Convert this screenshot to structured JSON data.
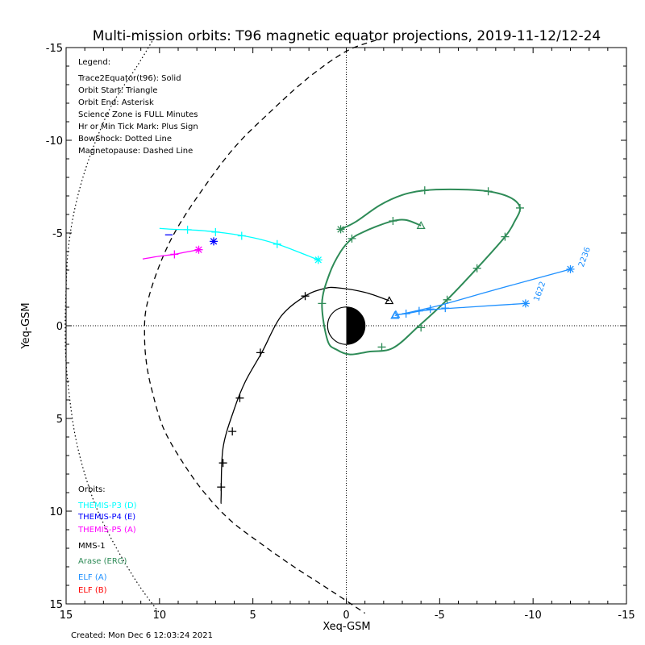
{
  "chart_data": {
    "type": "line",
    "title": "Multi-mission orbits: T96 magnetic equator projections, 2019-11-12/12-24",
    "xlabel": "Xeq-GSM",
    "ylabel": "Yeq-GSM",
    "xlim": [
      15,
      -15
    ],
    "ylim": [
      -15,
      15
    ],
    "x_ticks": [
      15,
      10,
      5,
      0,
      -5,
      -10,
      -15
    ],
    "y_ticks": [
      -15,
      -10,
      -5,
      0,
      5,
      10,
      15
    ],
    "footer": "Created: Mon Dec  6 12:03:24 2021",
    "legend": {
      "title": "Legend:",
      "lines": [
        "Trace2Equator(t96): Solid",
        "Orbit Start: Triangle",
        "Orbit End: Asterisk",
        "Science Zone is FULL Minutes",
        "Hr or Min Tick Mark: Plus Sign",
        "BowShock: Dotted Line",
        "Magnetopause: Dashed Line"
      ]
    },
    "orbits": {
      "title": "Orbits:",
      "items": [
        {
          "label": "THEMIS-P3 (D)",
          "color": "#00ffff"
        },
        {
          "label": "THEMIS-P4 (E)",
          "color": "#0000ff"
        },
        {
          "label": "THEMIS-P5 (A)",
          "color": "#ff00ff"
        },
        {
          "label": "MMS-1",
          "color": "#000000"
        },
        {
          "label": "Arase (ERG)",
          "color": "#2e8b57"
        },
        {
          "label": "ELF (A)",
          "color": "#1e90ff"
        },
        {
          "label": "ELF (B)",
          "color": "#ff0000"
        }
      ]
    },
    "boundaries": {
      "bowshock": [
        [
          10.3,
          -15.5
        ],
        [
          11.2,
          -14
        ],
        [
          12.5,
          -12
        ],
        [
          13.4,
          -10
        ],
        [
          14.1,
          -8
        ],
        [
          14.6,
          -6
        ],
        [
          14.9,
          -4
        ],
        [
          15.0,
          -2
        ],
        [
          15.05,
          0
        ],
        [
          15.0,
          2
        ],
        [
          14.8,
          4
        ],
        [
          14.5,
          6
        ],
        [
          14.0,
          8
        ],
        [
          13.3,
          10
        ],
        [
          12.3,
          12
        ],
        [
          11.1,
          14
        ],
        [
          10.0,
          15.5
        ]
      ],
      "magnetopause": [
        [
          -1.6,
          -15.4
        ],
        [
          0,
          -14.8
        ],
        [
          2,
          -13.4
        ],
        [
          4,
          -11.6
        ],
        [
          6,
          -9.6
        ],
        [
          7.8,
          -7.2
        ],
        [
          9.2,
          -5.0
        ],
        [
          10.1,
          -3.0
        ],
        [
          10.7,
          -1.0
        ],
        [
          10.8,
          0.5
        ],
        [
          10.7,
          2
        ],
        [
          10.4,
          3.5
        ],
        [
          9.8,
          5.5
        ],
        [
          8.8,
          7.3
        ],
        [
          7.6,
          9
        ],
        [
          6.2,
          10.5
        ],
        [
          4.5,
          11.8
        ],
        [
          2.8,
          13
        ],
        [
          0.8,
          14.3
        ],
        [
          -1.0,
          15.5
        ]
      ]
    },
    "series": [
      {
        "name": "MMS-1",
        "color": "#000000",
        "points": [
          [
            -2.3,
            -1.35
          ],
          [
            -1.0,
            -1.8
          ],
          [
            0.5,
            -2.05
          ],
          [
            1.2,
            -2.0
          ],
          [
            2.2,
            -1.6
          ],
          [
            3.5,
            -0.5
          ],
          [
            4.5,
            1.4
          ],
          [
            5.4,
            3.0
          ],
          [
            6.0,
            4.5
          ],
          [
            6.6,
            6.6
          ],
          [
            6.7,
            9.2
          ],
          [
            6.7,
            9.6
          ]
        ],
        "ticks": [
          [
            2.2,
            -1.6
          ],
          [
            4.6,
            1.45
          ],
          [
            5.7,
            3.9
          ],
          [
            6.1,
            5.7
          ],
          [
            6.6,
            7.4
          ],
          [
            6.7,
            8.7
          ]
        ],
        "start": [
          -2.3,
          -1.35
        ],
        "end": null
      },
      {
        "name": "Arase (ERG)",
        "color": "#2e8b57",
        "points": [
          [
            -4.0,
            -5.4
          ],
          [
            -3.2,
            -5.7
          ],
          [
            -2.5,
            -5.65
          ],
          [
            -1.6,
            -5.35
          ],
          [
            -0.8,
            -5.0
          ],
          [
            -0.3,
            -4.7
          ],
          [
            0.3,
            -4.0
          ],
          [
            0.9,
            -2.8
          ],
          [
            1.3,
            -1.2
          ],
          [
            1.0,
            0.8
          ],
          [
            0.5,
            1.3
          ],
          [
            -0.2,
            1.55
          ],
          [
            -1.2,
            1.4
          ],
          [
            -2.5,
            1.2
          ],
          [
            -3.9,
            0
          ],
          [
            -5.4,
            -1.4
          ],
          [
            -7.0,
            -3.1
          ],
          [
            -8.5,
            -4.8
          ],
          [
            -9.0,
            -5.6
          ],
          [
            -9.3,
            -6.35
          ],
          [
            -8.8,
            -6.9
          ],
          [
            -7.6,
            -7.25
          ],
          [
            -6.0,
            -7.35
          ],
          [
            -4.2,
            -7.3
          ],
          [
            -3.0,
            -7.05
          ],
          [
            -1.8,
            -6.5
          ],
          [
            -0.5,
            -5.6
          ],
          [
            0.3,
            -5.2
          ]
        ],
        "ticks": [
          [
            -2.5,
            -5.65
          ],
          [
            -0.3,
            -4.7
          ],
          [
            1.3,
            -1.2
          ],
          [
            -1.9,
            1.15
          ],
          [
            -4.0,
            0.1
          ],
          [
            -5.4,
            -1.4
          ],
          [
            -7.0,
            -3.1
          ],
          [
            -8.5,
            -4.8
          ],
          [
            -9.3,
            -6.35
          ],
          [
            -7.6,
            -7.25
          ],
          [
            -4.2,
            -7.3
          ]
        ],
        "start": [
          -4.0,
          -5.4
        ],
        "end": [
          0.3,
          -5.2
        ]
      },
      {
        "name": "THEMIS-P3 (D)",
        "color": "#00ffff",
        "points": [
          [
            1.5,
            -3.55
          ],
          [
            2.5,
            -3.95
          ],
          [
            3.7,
            -4.4
          ],
          [
            5.0,
            -4.75
          ],
          [
            6.5,
            -5.0
          ],
          [
            8.0,
            -5.15
          ],
          [
            9.3,
            -5.2
          ],
          [
            10.0,
            -5.25
          ]
        ],
        "ticks": [
          [
            3.7,
            -4.4
          ],
          [
            5.6,
            -4.85
          ],
          [
            7.0,
            -5.05
          ],
          [
            8.5,
            -5.18
          ]
        ],
        "start": null,
        "end": [
          1.5,
          -3.55
        ]
      },
      {
        "name": "THEMIS-P5 (A)",
        "color": "#ff00ff",
        "points": [
          [
            10.9,
            -3.6
          ],
          [
            10.0,
            -3.75
          ],
          [
            9.2,
            -3.85
          ],
          [
            8.7,
            -3.95
          ],
          [
            7.9,
            -4.1
          ]
        ],
        "ticks": [
          [
            9.2,
            -3.85
          ]
        ],
        "start": null,
        "end": [
          7.9,
          -4.1
        ]
      },
      {
        "name": "THEMIS-P4 (E)",
        "color": "#0000ff",
        "points": [
          [
            9.7,
            -4.9
          ],
          [
            9.3,
            -4.9
          ]
        ],
        "ticks": [],
        "start": null,
        "end": [
          7.1,
          -4.55
        ]
      },
      {
        "name": "ELF (A) 2236",
        "color": "#1e90ff",
        "label": "2236",
        "points": [
          [
            -2.6,
            -0.55
          ],
          [
            -5.0,
            -1.1
          ],
          [
            -8.0,
            -1.95
          ],
          [
            -12.0,
            -3.05
          ]
        ],
        "ticks": [],
        "start": [
          -2.6,
          -0.55
        ],
        "end": [
          -12.0,
          -3.05
        ]
      },
      {
        "name": "ELF (A) 1622",
        "color": "#1e90ff",
        "label": "1622",
        "points": [
          [
            -2.65,
            -0.6
          ],
          [
            -3.2,
            -0.65
          ],
          [
            -4.0,
            -0.8
          ],
          [
            -5.0,
            -0.9
          ],
          [
            -6.5,
            -1.0
          ],
          [
            -8.0,
            -1.1
          ],
          [
            -9.6,
            -1.2
          ]
        ],
        "ticks": [
          [
            -3.2,
            -0.65
          ],
          [
            -3.9,
            -0.8
          ],
          [
            -4.5,
            -0.9
          ],
          [
            -5.3,
            -0.95
          ]
        ],
        "start": [
          -2.65,
          -0.6
        ],
        "end": [
          -9.6,
          -1.2
        ]
      }
    ]
  }
}
